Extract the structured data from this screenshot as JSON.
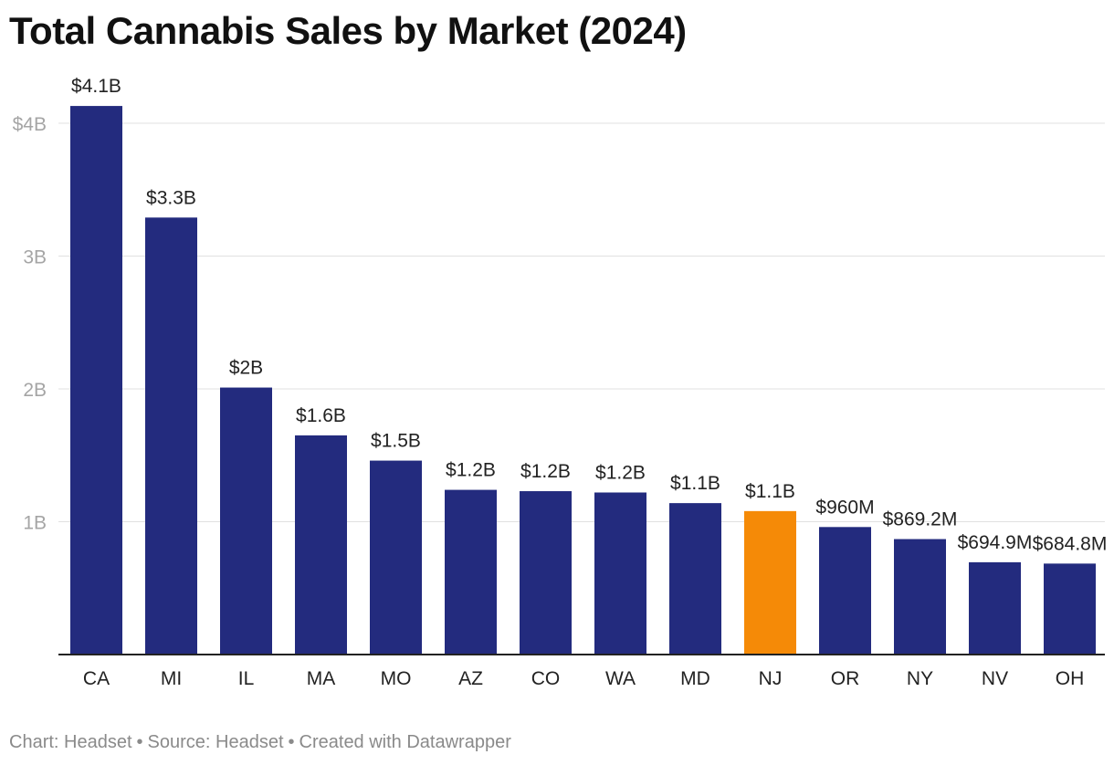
{
  "colors": {
    "bar": "#232b7e",
    "highlight": "#f58a07",
    "grid": "#e0e0e0",
    "axis": "#222222",
    "tick_label": "#a5a5a5",
    "value_label": "#222222",
    "footer": "#8a8a8a"
  },
  "chart_data": {
    "type": "bar",
    "title": "Total Cannabis Sales by Market (2024)",
    "xlabel": "",
    "ylabel": "",
    "categories": [
      "CA",
      "MI",
      "IL",
      "MA",
      "MO",
      "AZ",
      "CO",
      "WA",
      "MD",
      "NJ",
      "OR",
      "NY",
      "NV",
      "OH"
    ],
    "values": [
      4.13,
      3.29,
      2.01,
      1.65,
      1.46,
      1.24,
      1.23,
      1.22,
      1.14,
      1.08,
      0.96,
      0.8692,
      0.6949,
      0.6848
    ],
    "value_labels": [
      "$4.1B",
      "$3.3B",
      "$2B",
      "$1.6B",
      "$1.5B",
      "$1.2B",
      "$1.2B",
      "$1.2B",
      "$1.1B",
      "$1.1B",
      "$960M",
      "$869.2M",
      "$694.9M",
      "$684.8M"
    ],
    "highlight_category": "NJ",
    "ylim": [
      0,
      4
    ],
    "yticks": [
      1,
      2,
      3,
      4
    ],
    "ytick_labels": [
      "1B",
      "2B",
      "3B",
      "$4B"
    ],
    "grid": true,
    "units": "billions USD"
  },
  "footer": {
    "chart": "Chart: Headset",
    "separator": "•",
    "source": "Source: Headset",
    "created": "Created with Datawrapper"
  }
}
